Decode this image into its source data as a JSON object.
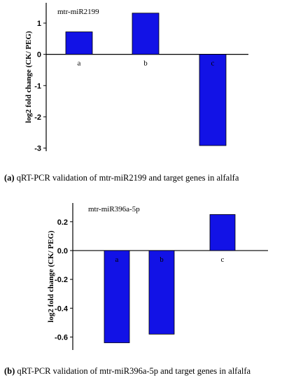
{
  "chart_data": [
    {
      "type": "bar",
      "title": "mtr-miR2199",
      "ylabel": "log2 fold change (CK/ PEG)",
      "categories": [
        "a",
        "b",
        "c"
      ],
      "values": [
        0.72,
        1.32,
        -2.92
      ],
      "ylim": [
        -3.1,
        1.65
      ],
      "yticks": [
        "1",
        "0",
        "-1",
        "-2",
        "-3"
      ],
      "bar_color": "#1212e6",
      "grid": false
    },
    {
      "type": "bar",
      "title": "mtr-miR396a-5p",
      "ylabel": "log2 fold change (CK/ PEG)",
      "categories": [
        "a",
        "b",
        "c"
      ],
      "values": [
        -0.64,
        -0.58,
        0.25
      ],
      "ylim": [
        -0.69,
        0.33
      ],
      "yticks": [
        "0.2",
        "0.0",
        "-0.2",
        "-0.4",
        "-0.6"
      ],
      "bar_color": "#1212e6",
      "grid": false
    }
  ],
  "captions": [
    {
      "label": "(a)",
      "text": " qRT-PCR validation of mtr-miR2199 and target genes in alfalfa"
    },
    {
      "label": "(b)",
      "text": " qRT-PCR validation of mtr-miR396a-5p and target genes in alfalfa"
    }
  ]
}
